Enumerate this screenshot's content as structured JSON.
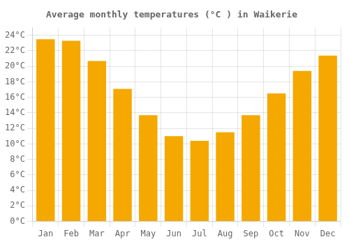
{
  "chart_data": {
    "type": "bar",
    "title": "Average monthly temperatures (°C ) in Waikerie",
    "categories": [
      "Jan",
      "Feb",
      "Mar",
      "Apr",
      "May",
      "Jun",
      "Jul",
      "Aug",
      "Sep",
      "Oct",
      "Nov",
      "Dec"
    ],
    "values": [
      23.5,
      23.3,
      20.7,
      17.1,
      13.7,
      11.0,
      10.4,
      11.5,
      13.7,
      16.5,
      19.4,
      21.4
    ],
    "color": "#F5A800",
    "ylim": [
      0,
      25
    ],
    "yticks": [
      {
        "value": 0,
        "label": "0°C"
      },
      {
        "value": 2,
        "label": "2°C"
      },
      {
        "value": 4,
        "label": "4°C"
      },
      {
        "value": 6,
        "label": "6°C"
      },
      {
        "value": 8,
        "label": "8°C"
      },
      {
        "value": 10,
        "label": "10°C"
      },
      {
        "value": 12,
        "label": "12°C"
      },
      {
        "value": 14,
        "label": "14°C"
      },
      {
        "value": 16,
        "label": "16°C"
      },
      {
        "value": 18,
        "label": "18°C"
      },
      {
        "value": 20,
        "label": "20°C"
      },
      {
        "value": 22,
        "label": "22°C"
      },
      {
        "value": 24,
        "label": "24°C"
      }
    ],
    "grid": true
  }
}
